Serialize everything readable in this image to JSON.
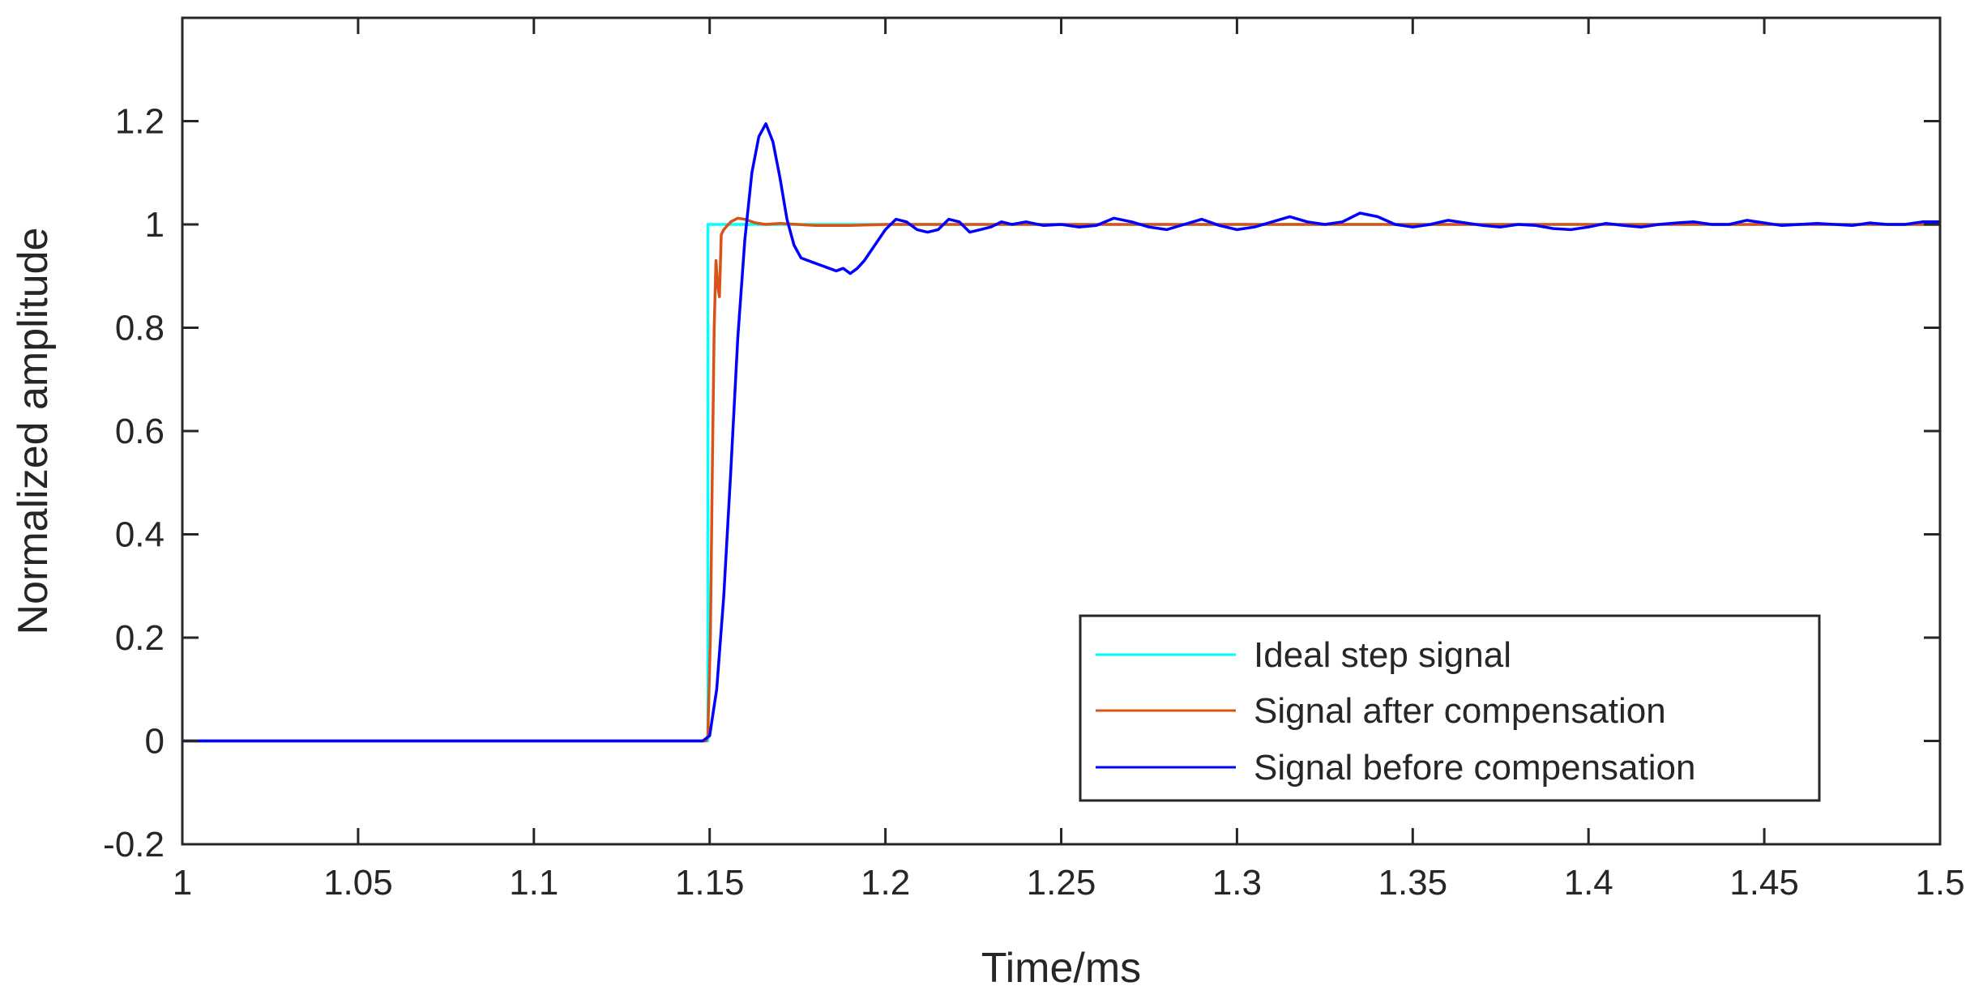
{
  "chart_data": {
    "type": "line",
    "xlabel": "Time/ms",
    "ylabel": "Normalized amplitude",
    "xlim": [
      1,
      1.5
    ],
    "ylim": [
      -0.2,
      1.4
    ],
    "x_ticks": [
      "1",
      "1.05",
      "1.1",
      "1.15",
      "1.2",
      "1.25",
      "1.3",
      "1.35",
      "1.4",
      "1.45",
      "1.5"
    ],
    "y_ticks": [
      "-0.2",
      "0",
      "0.2",
      "0.4",
      "0.6",
      "0.8",
      "1",
      "1.2"
    ],
    "grid": false,
    "legend_position": "bottom-right",
    "series": [
      {
        "name": "Ideal step signal",
        "color": "#00FFFF",
        "points": [
          [
            1.0,
            0
          ],
          [
            1.1495,
            0
          ],
          [
            1.1495,
            1
          ],
          [
            1.5,
            1
          ]
        ]
      },
      {
        "name": "Signal after compensation",
        "color": "#D95319",
        "points": [
          [
            1.0,
            0
          ],
          [
            1.05,
            0
          ],
          [
            1.1,
            0
          ],
          [
            1.149,
            0
          ],
          [
            1.1495,
            0.01
          ],
          [
            1.1502,
            0.2
          ],
          [
            1.1508,
            0.55
          ],
          [
            1.1513,
            0.8
          ],
          [
            1.1518,
            0.93
          ],
          [
            1.1523,
            0.88
          ],
          [
            1.1528,
            0.86
          ],
          [
            1.1533,
            0.98
          ],
          [
            1.154,
            0.99
          ],
          [
            1.156,
            1.005
          ],
          [
            1.158,
            1.012
          ],
          [
            1.16,
            1.01
          ],
          [
            1.163,
            1.003
          ],
          [
            1.166,
            1.0
          ],
          [
            1.17,
            1.002
          ],
          [
            1.175,
            1.0
          ],
          [
            1.18,
            0.998
          ],
          [
            1.19,
            0.998
          ],
          [
            1.2,
            1.0
          ],
          [
            1.25,
            1.0
          ],
          [
            1.3,
            1.0
          ],
          [
            1.35,
            1.0
          ],
          [
            1.4,
            1.0
          ],
          [
            1.45,
            1.0
          ],
          [
            1.5,
            1.0
          ]
        ]
      },
      {
        "name": "Signal before compensation",
        "color": "#0000FF",
        "points": [
          [
            1.0,
            0.0
          ],
          [
            1.02,
            0.0
          ],
          [
            1.04,
            0.0
          ],
          [
            1.06,
            0.0
          ],
          [
            1.08,
            0.0
          ],
          [
            1.1,
            0.0
          ],
          [
            1.12,
            0.0
          ],
          [
            1.14,
            0.0
          ],
          [
            1.148,
            0.0
          ],
          [
            1.15,
            0.01
          ],
          [
            1.152,
            0.1
          ],
          [
            1.154,
            0.28
          ],
          [
            1.156,
            0.52
          ],
          [
            1.158,
            0.78
          ],
          [
            1.16,
            0.97
          ],
          [
            1.162,
            1.1
          ],
          [
            1.164,
            1.17
          ],
          [
            1.166,
            1.195
          ],
          [
            1.168,
            1.16
          ],
          [
            1.17,
            1.09
          ],
          [
            1.172,
            1.01
          ],
          [
            1.174,
            0.96
          ],
          [
            1.176,
            0.935
          ],
          [
            1.178,
            0.93
          ],
          [
            1.18,
            0.925
          ],
          [
            1.182,
            0.92
          ],
          [
            1.184,
            0.915
          ],
          [
            1.186,
            0.91
          ],
          [
            1.188,
            0.915
          ],
          [
            1.19,
            0.905
          ],
          [
            1.192,
            0.915
          ],
          [
            1.194,
            0.93
          ],
          [
            1.196,
            0.95
          ],
          [
            1.198,
            0.97
          ],
          [
            1.2,
            0.99
          ],
          [
            1.203,
            1.01
          ],
          [
            1.206,
            1.005
          ],
          [
            1.209,
            0.99
          ],
          [
            1.212,
            0.985
          ],
          [
            1.215,
            0.99
          ],
          [
            1.218,
            1.01
          ],
          [
            1.221,
            1.005
          ],
          [
            1.224,
            0.985
          ],
          [
            1.227,
            0.99
          ],
          [
            1.23,
            0.995
          ],
          [
            1.233,
            1.005
          ],
          [
            1.236,
            1.0
          ],
          [
            1.24,
            1.005
          ],
          [
            1.245,
            0.998
          ],
          [
            1.25,
            1.0
          ],
          [
            1.255,
            0.995
          ],
          [
            1.26,
            0.998
          ],
          [
            1.265,
            1.012
          ],
          [
            1.27,
            1.005
          ],
          [
            1.275,
            0.995
          ],
          [
            1.28,
            0.99
          ],
          [
            1.285,
            1.0
          ],
          [
            1.29,
            1.01
          ],
          [
            1.295,
            0.998
          ],
          [
            1.3,
            0.99
          ],
          [
            1.305,
            0.995
          ],
          [
            1.31,
            1.005
          ],
          [
            1.315,
            1.015
          ],
          [
            1.32,
            1.005
          ],
          [
            1.325,
            1.0
          ],
          [
            1.33,
            1.005
          ],
          [
            1.335,
            1.022
          ],
          [
            1.34,
            1.015
          ],
          [
            1.345,
            1.0
          ],
          [
            1.35,
            0.995
          ],
          [
            1.355,
            1.0
          ],
          [
            1.36,
            1.008
          ],
          [
            1.365,
            1.003
          ],
          [
            1.37,
            0.998
          ],
          [
            1.375,
            0.995
          ],
          [
            1.38,
            1.0
          ],
          [
            1.385,
            0.998
          ],
          [
            1.39,
            0.992
          ],
          [
            1.395,
            0.99
          ],
          [
            1.4,
            0.995
          ],
          [
            1.405,
            1.002
          ],
          [
            1.41,
            0.998
          ],
          [
            1.415,
            0.995
          ],
          [
            1.42,
            1.0
          ],
          [
            1.425,
            1.003
          ],
          [
            1.43,
            1.005
          ],
          [
            1.435,
            1.0
          ],
          [
            1.44,
            1.0
          ],
          [
            1.445,
            1.008
          ],
          [
            1.45,
            1.003
          ],
          [
            1.455,
            0.998
          ],
          [
            1.46,
            1.0
          ],
          [
            1.465,
            1.002
          ],
          [
            1.47,
            1.0
          ],
          [
            1.475,
            0.998
          ],
          [
            1.48,
            1.003
          ],
          [
            1.485,
            1.0
          ],
          [
            1.49,
            1.0
          ],
          [
            1.495,
            1.005
          ],
          [
            1.5,
            1.005
          ]
        ]
      }
    ]
  }
}
